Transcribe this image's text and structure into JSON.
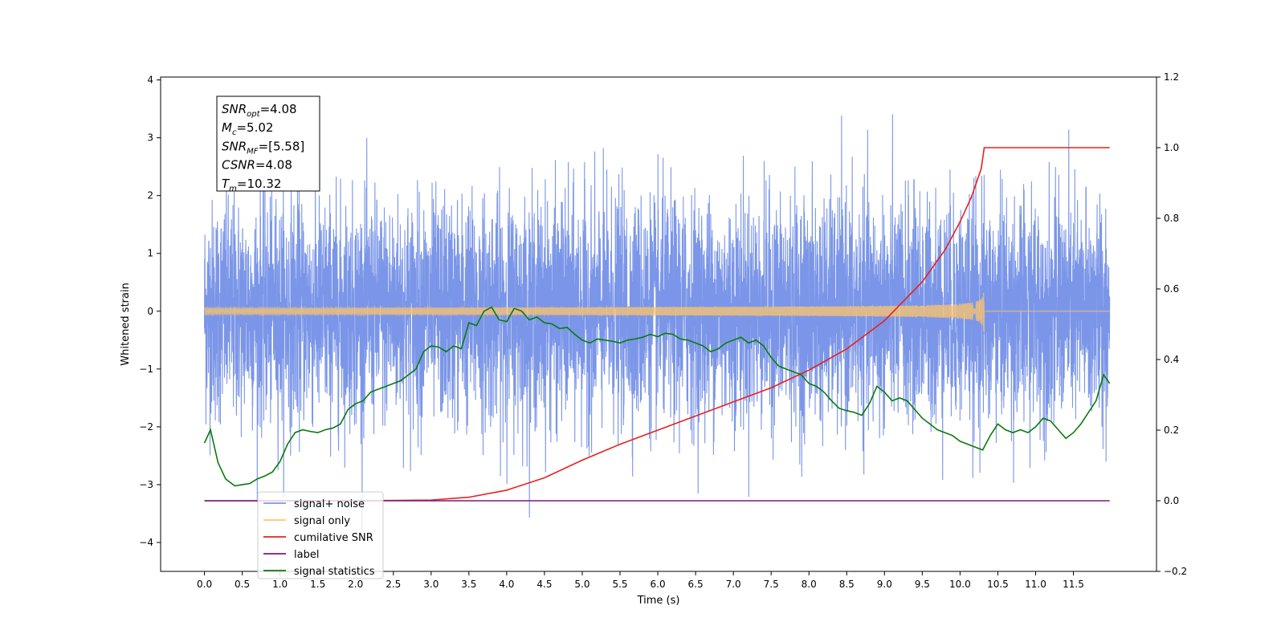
{
  "chart_data": {
    "type": "line",
    "xlabel": "Time (s)",
    "ylabel": "Whitened strain",
    "xlim": [
      -0.58,
      12.6
    ],
    "ylim": [
      -4.5,
      4.05
    ],
    "y2lim": [
      -0.2,
      1.2
    ],
    "x_ticks": [
      "0.0",
      "0.5",
      "1.0",
      "1.5",
      "2.0",
      "2.5",
      "3.0",
      "3.5",
      "4.0",
      "4.5",
      "5.0",
      "5.5",
      "6.0",
      "6.5",
      "7.0",
      "7.5",
      "8.0",
      "8.5",
      "9.0",
      "9.5",
      "10.0",
      "10.5",
      "11.0",
      "11.5"
    ],
    "y_ticks": [
      "4",
      "3",
      "2",
      "1",
      "0",
      "−1",
      "−2",
      "−3",
      "−4"
    ],
    "y2_ticks": [
      "1.2",
      "1.0",
      "0.8",
      "0.6",
      "0.4",
      "0.2",
      "0.0",
      "−0.2"
    ],
    "grid": false,
    "legend_position": "lower-left",
    "stats_box": [
      {
        "name": "SNR",
        "sub": "opt",
        "value": "=4.08"
      },
      {
        "name": "M",
        "sub": "c",
        "value": "=5.02"
      },
      {
        "name": "SNR",
        "sub": "MF",
        "value": "=[5.58]"
      },
      {
        "name": "CSNR",
        "sub": "",
        "value": "=4.08"
      },
      {
        "name": "T",
        "sub": "m",
        "value": "=10.32"
      }
    ],
    "series": [
      {
        "name": "signal+ noise",
        "color": "#7b96e8",
        "axis": "left",
        "kind": "noise",
        "x_range": [
          0.0,
          11.98
        ],
        "amplitude_range": [
          -4.1,
          3.65
        ]
      },
      {
        "name": "signal only",
        "color": "#ffc46b",
        "axis": "left",
        "kind": "chirp",
        "x_range": [
          0.0,
          10.32
        ],
        "peak_amplitude": 0.38
      },
      {
        "name": "cumilative SNR",
        "color": "#e82020",
        "axis": "right",
        "x": [
          0.0,
          2.0,
          3.0,
          3.5,
          4.0,
          4.5,
          5.0,
          5.5,
          6.0,
          6.5,
          7.0,
          7.5,
          8.0,
          8.5,
          9.0,
          9.5,
          9.8,
          10.0,
          10.15,
          10.28,
          10.32,
          11.98
        ],
        "values": [
          0.0,
          0.0,
          0.002,
          0.01,
          0.03,
          0.065,
          0.115,
          0.16,
          0.2,
          0.24,
          0.28,
          0.32,
          0.37,
          0.43,
          0.51,
          0.62,
          0.71,
          0.79,
          0.86,
          0.94,
          1.0,
          1.0
        ]
      },
      {
        "name": "label",
        "color": "#7a1a7a",
        "axis": "right",
        "x": [
          0.0,
          11.98
        ],
        "values": [
          0.0,
          0.0
        ]
      },
      {
        "name": "signal statistics",
        "color": "#0a7a0a",
        "axis": "left",
        "x": [
          0.0,
          0.08,
          0.18,
          0.28,
          0.4,
          0.5,
          0.6,
          0.7,
          0.8,
          0.9,
          1.0,
          1.1,
          1.2,
          1.3,
          1.4,
          1.5,
          1.6,
          1.7,
          1.8,
          1.9,
          2.0,
          2.1,
          2.2,
          2.3,
          2.4,
          2.5,
          2.6,
          2.7,
          2.8,
          2.9,
          3.0,
          3.1,
          3.2,
          3.3,
          3.4,
          3.5,
          3.6,
          3.7,
          3.8,
          3.9,
          4.0,
          4.1,
          4.2,
          4.3,
          4.4,
          4.5,
          4.6,
          4.7,
          4.8,
          4.9,
          5.0,
          5.1,
          5.2,
          5.3,
          5.4,
          5.5,
          5.6,
          5.7,
          5.8,
          5.9,
          6.0,
          6.1,
          6.2,
          6.3,
          6.4,
          6.5,
          6.6,
          6.7,
          6.8,
          6.9,
          7.0,
          7.1,
          7.2,
          7.3,
          7.4,
          7.5,
          7.6,
          7.7,
          7.8,
          7.9,
          8.0,
          8.1,
          8.2,
          8.3,
          8.4,
          8.5,
          8.6,
          8.7,
          8.8,
          8.9,
          9.0,
          9.1,
          9.2,
          9.3,
          9.4,
          9.5,
          9.6,
          9.7,
          9.8,
          9.9,
          10.0,
          10.1,
          10.2,
          10.3,
          10.4,
          10.5,
          10.6,
          10.7,
          10.8,
          10.9,
          11.0,
          11.1,
          11.2,
          11.3,
          11.4,
          11.5,
          11.6,
          11.7,
          11.8,
          11.9,
          11.98
        ],
        "values": [
          -2.28,
          -2.05,
          -2.62,
          -2.9,
          -3.02,
          -3.0,
          -2.98,
          -2.9,
          -2.85,
          -2.78,
          -2.6,
          -2.3,
          -2.1,
          -2.05,
          -2.08,
          -2.1,
          -2.05,
          -2.02,
          -1.95,
          -1.7,
          -1.6,
          -1.55,
          -1.4,
          -1.35,
          -1.3,
          -1.25,
          -1.2,
          -1.1,
          -1.0,
          -0.7,
          -0.6,
          -0.62,
          -0.7,
          -0.6,
          -0.65,
          -0.2,
          -0.25,
          0.0,
          0.07,
          -0.15,
          -0.18,
          0.05,
          0.0,
          -0.15,
          -0.1,
          -0.2,
          -0.22,
          -0.3,
          -0.28,
          -0.4,
          -0.5,
          -0.55,
          -0.48,
          -0.5,
          -0.52,
          -0.55,
          -0.5,
          -0.48,
          -0.45,
          -0.4,
          -0.44,
          -0.38,
          -0.4,
          -0.48,
          -0.5,
          -0.55,
          -0.6,
          -0.7,
          -0.65,
          -0.55,
          -0.5,
          -0.45,
          -0.55,
          -0.5,
          -0.6,
          -0.8,
          -0.95,
          -1.0,
          -1.05,
          -1.1,
          -1.25,
          -1.3,
          -1.4,
          -1.55,
          -1.68,
          -1.72,
          -1.75,
          -1.8,
          -1.6,
          -1.3,
          -1.4,
          -1.55,
          -1.5,
          -1.55,
          -1.7,
          -1.85,
          -1.95,
          -2.05,
          -2.1,
          -2.15,
          -2.25,
          -2.3,
          -2.35,
          -2.4,
          -2.15,
          -1.95,
          -2.05,
          -2.1,
          -2.05,
          -2.1,
          -2.0,
          -1.85,
          -1.9,
          -2.05,
          -2.2,
          -2.1,
          -1.95,
          -1.75,
          -1.55,
          -1.1,
          -1.25
        ]
      }
    ]
  }
}
